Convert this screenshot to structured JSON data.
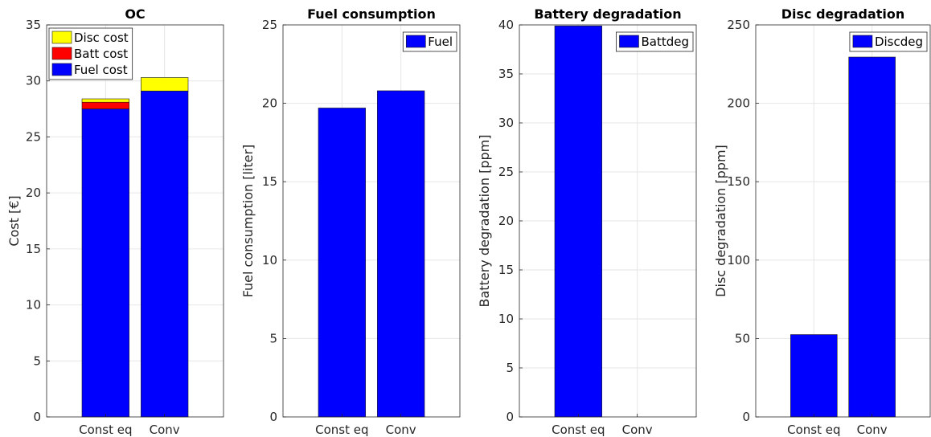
{
  "chart_data": [
    {
      "type": "bar",
      "stacked": true,
      "title": "OC",
      "xlabel": "",
      "ylabel": "Cost [€]",
      "categories": [
        "Const eq",
        "Conv"
      ],
      "ylim": [
        0,
        35
      ],
      "yticks": [
        0,
        5,
        10,
        15,
        20,
        25,
        30,
        35
      ],
      "grid": true,
      "legend_position": "top-left",
      "series": [
        {
          "name": "Fuel cost",
          "color": "#0000ff",
          "values": [
            27.5,
            29.1
          ]
        },
        {
          "name": "Batt cost",
          "color": "#ff0000",
          "values": [
            0.6,
            0
          ]
        },
        {
          "name": "Disc cost",
          "color": "#ffff00",
          "values": [
            0.3,
            1.2
          ]
        }
      ]
    },
    {
      "type": "bar",
      "title": "Fuel consumption",
      "xlabel": "",
      "ylabel": "Fuel consumption [liter]",
      "categories": [
        "Const eq",
        "Conv"
      ],
      "ylim": [
        0,
        25
      ],
      "yticks": [
        0,
        5,
        10,
        15,
        20,
        25
      ],
      "grid": true,
      "legend_position": "top-right",
      "series": [
        {
          "name": "Fuel",
          "color": "#0000ff",
          "values": [
            19.7,
            20.8
          ]
        }
      ]
    },
    {
      "type": "bar",
      "title": "Battery degradation",
      "xlabel": "",
      "ylabel": "Battery degradation [ppm]",
      "categories": [
        "Const eq",
        "Conv"
      ],
      "ylim": [
        0,
        40
      ],
      "yticks": [
        0,
        5,
        10,
        15,
        20,
        25,
        30,
        35,
        40
      ],
      "grid": true,
      "legend_position": "top-right",
      "series": [
        {
          "name": "Battdeg",
          "color": "#0000ff",
          "values": [
            39.9,
            0
          ]
        }
      ]
    },
    {
      "type": "bar",
      "title": "Disc degradation",
      "xlabel": "",
      "ylabel": "Disc degradation [ppm]",
      "categories": [
        "Const eq",
        "Conv"
      ],
      "ylim": [
        0,
        250
      ],
      "yticks": [
        0,
        50,
        100,
        150,
        200,
        250
      ],
      "grid": true,
      "legend_position": "top-right",
      "series": [
        {
          "name": "Discdeg",
          "color": "#0000ff",
          "values": [
            52.5,
            229.5
          ]
        }
      ]
    }
  ]
}
